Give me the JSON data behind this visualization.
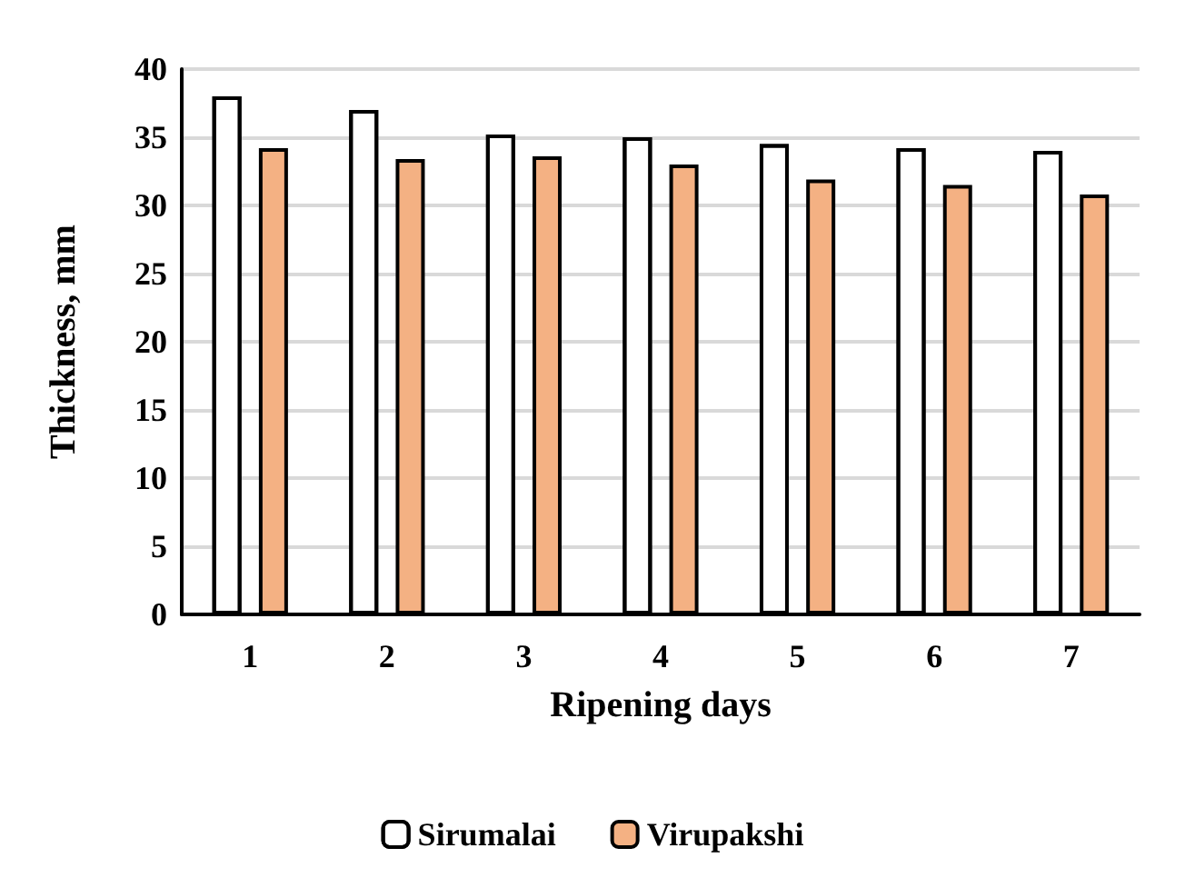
{
  "chart_data": {
    "type": "bar",
    "xlabel": "Ripening days",
    "ylabel": "Thickness, mm",
    "categories": [
      "1",
      "2",
      "3",
      "4",
      "5",
      "6",
      "7"
    ],
    "series": [
      {
        "name": "Sirumalai",
        "color": "#ffffff",
        "values": [
          38.0,
          37.0,
          35.2,
          35.0,
          34.5,
          34.2,
          34.0
        ]
      },
      {
        "name": "Virupakshi",
        "color": "#f4b183",
        "values": [
          34.2,
          33.4,
          33.6,
          33.0,
          31.9,
          31.5,
          30.8
        ]
      }
    ],
    "ylim": [
      0,
      40
    ],
    "yticks": [
      0,
      5,
      10,
      15,
      20,
      25,
      30,
      35,
      40
    ],
    "grid": "y",
    "legend": "bottom"
  }
}
